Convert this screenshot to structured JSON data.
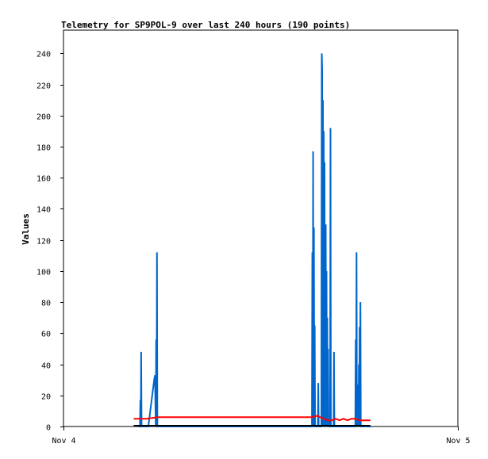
{
  "chart_data": {
    "type": "line",
    "title": "Telemetry for SP9POL-9 over last 240 hours (190 points)",
    "xlabel": "",
    "ylabel": "Values",
    "x_ticks": [
      "Nov 4",
      "Nov 5"
    ],
    "xlim": [
      0,
      1
    ],
    "ylim": [
      0,
      255
    ],
    "y_ticks": [
      0,
      20,
      40,
      60,
      80,
      100,
      120,
      140,
      160,
      180,
      200,
      220,
      240
    ],
    "grid": false,
    "legend": "none",
    "colors": {
      "blue": "#0066cc",
      "red": "#ff0000",
      "black": "#000000"
    },
    "series": [
      {
        "color": "#0066cc",
        "points": [
          [
            0.19,
            0
          ],
          [
            0.194,
            0
          ],
          [
            0.195,
            17
          ],
          [
            0.196,
            0
          ],
          [
            0.197,
            48
          ],
          [
            0.198,
            0
          ],
          [
            0.215,
            0
          ],
          [
            0.23,
            30
          ],
          [
            0.232,
            33
          ],
          [
            0.234,
            0
          ],
          [
            0.235,
            56
          ],
          [
            0.236,
            0
          ],
          [
            0.237,
            112
          ],
          [
            0.238,
            0
          ],
          [
            0.24,
            0
          ],
          [
            0.63,
            0
          ],
          [
            0.631,
            112
          ],
          [
            0.632,
            0
          ],
          [
            0.633,
            177
          ],
          [
            0.634,
            0
          ],
          [
            0.635,
            128
          ],
          [
            0.636,
            0
          ],
          [
            0.637,
            65
          ],
          [
            0.638,
            0
          ],
          [
            0.645,
            0
          ],
          [
            0.646,
            28
          ],
          [
            0.647,
            0
          ],
          [
            0.654,
            0
          ],
          [
            0.655,
            240
          ],
          [
            0.656,
            230
          ],
          [
            0.657,
            0
          ],
          [
            0.658,
            210
          ],
          [
            0.659,
            0
          ],
          [
            0.66,
            190
          ],
          [
            0.661,
            0
          ],
          [
            0.662,
            170
          ],
          [
            0.663,
            0
          ],
          [
            0.665,
            130
          ],
          [
            0.666,
            0
          ],
          [
            0.667,
            100
          ],
          [
            0.668,
            0
          ],
          [
            0.669,
            70
          ],
          [
            0.67,
            0
          ],
          [
            0.671,
            50
          ],
          [
            0.672,
            0
          ],
          [
            0.676,
            0
          ],
          [
            0.677,
            192
          ],
          [
            0.678,
            0
          ],
          [
            0.685,
            0
          ],
          [
            0.686,
            48
          ],
          [
            0.687,
            0
          ],
          [
            0.74,
            0
          ],
          [
            0.741,
            56
          ],
          [
            0.742,
            0
          ],
          [
            0.743,
            112
          ],
          [
            0.744,
            0
          ],
          [
            0.745,
            27
          ],
          [
            0.746,
            12
          ],
          [
            0.748,
            0
          ],
          [
            0.749,
            40
          ],
          [
            0.75,
            0
          ],
          [
            0.751,
            64
          ],
          [
            0.752,
            0
          ],
          [
            0.753,
            80
          ],
          [
            0.754,
            0
          ],
          [
            0.76,
            0
          ],
          [
            0.78,
            0
          ]
        ]
      },
      {
        "color": "#ff0000",
        "points": [
          [
            0.178,
            5
          ],
          [
            0.2,
            5
          ],
          [
            0.21,
            5
          ],
          [
            0.24,
            6
          ],
          [
            0.3,
            6
          ],
          [
            0.4,
            6
          ],
          [
            0.5,
            6
          ],
          [
            0.6,
            6
          ],
          [
            0.63,
            6
          ],
          [
            0.645,
            7
          ],
          [
            0.65,
            6
          ],
          [
            0.66,
            5
          ],
          [
            0.67,
            4
          ],
          [
            0.68,
            4
          ],
          [
            0.69,
            5
          ],
          [
            0.7,
            4
          ],
          [
            0.71,
            5
          ],
          [
            0.72,
            4
          ],
          [
            0.73,
            5
          ],
          [
            0.74,
            5
          ],
          [
            0.75,
            4
          ],
          [
            0.77,
            4
          ],
          [
            0.778,
            4
          ]
        ]
      },
      {
        "color": "#000000",
        "points": [
          [
            0.178,
            0.5
          ],
          [
            0.778,
            0.5
          ]
        ]
      }
    ]
  }
}
